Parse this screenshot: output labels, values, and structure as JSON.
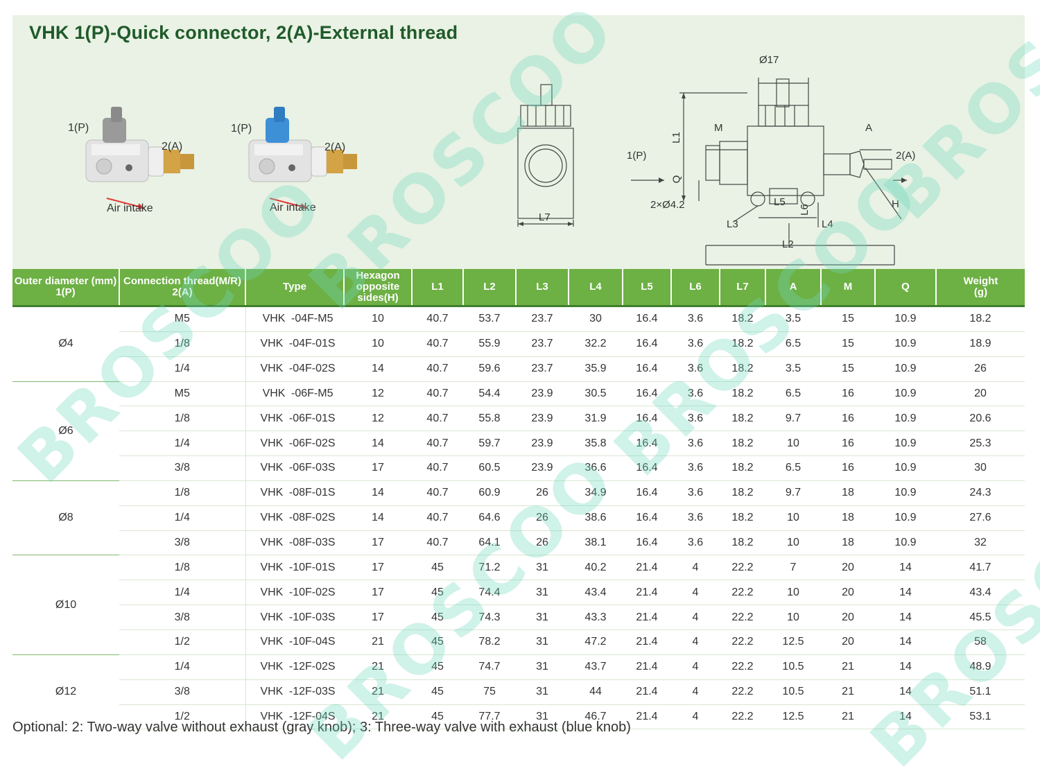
{
  "title": "VHK 1(P)-Quick connector, 2(A)-External thread",
  "watermark": "BROSCOO",
  "photos": [
    {
      "port1": "1(P)",
      "port2": "2(A)",
      "caption": "Air intake",
      "knob_color": "#9a9a9a"
    },
    {
      "port1": "1(P)",
      "port2": "2(A)",
      "caption": "Air intake",
      "knob_color": "#3d8fd6"
    }
  ],
  "side_view": {
    "l7": "L7"
  },
  "drawing": {
    "d17": "Ø17",
    "l1": "L1",
    "m": "M",
    "a": "A",
    "p": "1(P)",
    "out": "2(A)",
    "q": "Q",
    "holes": "2×Ø4.2",
    "l5": "L5",
    "l6": "L6",
    "h": "H",
    "l3": "L3",
    "l4": "L4",
    "l2": "L2"
  },
  "table": {
    "headers": [
      "Outer diameter (mm)\n1(P)",
      "Connection thread(M/R)\n2(A)",
      "Type",
      "Hexagon opposite sides(H)",
      "L1",
      "L2",
      "L3",
      "L4",
      "L5",
      "L6",
      "L7",
      "A",
      "M",
      "Q",
      "Weight\n(g)"
    ],
    "groups": [
      {
        "od": "Ø4",
        "rows": [
          {
            "thread": "M5",
            "type_a": "VHK",
            "type_b": "-04F-M5",
            "h": "10",
            "l1": "40.7",
            "l2": "53.7",
            "l3": "23.7",
            "l4": "30",
            "l5": "16.4",
            "l6": "3.6",
            "l7": "18.2",
            "a": "3.5",
            "m": "15",
            "q": "10.9",
            "w": "18.2"
          },
          {
            "thread": "1/8",
            "type_a": "VHK",
            "type_b": "-04F-01S",
            "h": "10",
            "l1": "40.7",
            "l2": "55.9",
            "l3": "23.7",
            "l4": "32.2",
            "l5": "16.4",
            "l6": "3.6",
            "l7": "18.2",
            "a": "6.5",
            "m": "15",
            "q": "10.9",
            "w": "18.9"
          },
          {
            "thread": "1/4",
            "type_a": "VHK",
            "type_b": "-04F-02S",
            "h": "14",
            "l1": "40.7",
            "l2": "59.6",
            "l3": "23.7",
            "l4": "35.9",
            "l5": "16.4",
            "l6": "3.6",
            "l7": "18.2",
            "a": "3.5",
            "m": "15",
            "q": "10.9",
            "w": "26"
          }
        ]
      },
      {
        "od": "Ø6",
        "rows": [
          {
            "thread": "M5",
            "type_a": "VHK",
            "type_b": "-06F-M5",
            "h": "12",
            "l1": "40.7",
            "l2": "54.4",
            "l3": "23.9",
            "l4": "30.5",
            "l5": "16.4",
            "l6": "3.6",
            "l7": "18.2",
            "a": "6.5",
            "m": "16",
            "q": "10.9",
            "w": "20"
          },
          {
            "thread": "1/8",
            "type_a": "VHK",
            "type_b": "-06F-01S",
            "h": "12",
            "l1": "40.7",
            "l2": "55.8",
            "l3": "23.9",
            "l4": "31.9",
            "l5": "16.4",
            "l6": "3.6",
            "l7": "18.2",
            "a": "9.7",
            "m": "16",
            "q": "10.9",
            "w": "20.6"
          },
          {
            "thread": "1/4",
            "type_a": "VHK",
            "type_b": "-06F-02S",
            "h": "14",
            "l1": "40.7",
            "l2": "59.7",
            "l3": "23.9",
            "l4": "35.8",
            "l5": "16.4",
            "l6": "3.6",
            "l7": "18.2",
            "a": "10",
            "m": "16",
            "q": "10.9",
            "w": "25.3"
          },
          {
            "thread": "3/8",
            "type_a": "VHK",
            "type_b": "-06F-03S",
            "h": "17",
            "l1": "40.7",
            "l2": "60.5",
            "l3": "23.9",
            "l4": "36.6",
            "l5": "16.4",
            "l6": "3.6",
            "l7": "18.2",
            "a": "6.5",
            "m": "16",
            "q": "10.9",
            "w": "30"
          }
        ]
      },
      {
        "od": "Ø8",
        "rows": [
          {
            "thread": "1/8",
            "type_a": "VHK",
            "type_b": "-08F-01S",
            "h": "14",
            "l1": "40.7",
            "l2": "60.9",
            "l3": "26",
            "l4": "34.9",
            "l5": "16.4",
            "l6": "3.6",
            "l7": "18.2",
            "a": "9.7",
            "m": "18",
            "q": "10.9",
            "w": "24.3"
          },
          {
            "thread": "1/4",
            "type_a": "VHK",
            "type_b": "-08F-02S",
            "h": "14",
            "l1": "40.7",
            "l2": "64.6",
            "l3": "26",
            "l4": "38.6",
            "l5": "16.4",
            "l6": "3.6",
            "l7": "18.2",
            "a": "10",
            "m": "18",
            "q": "10.9",
            "w": "27.6"
          },
          {
            "thread": "3/8",
            "type_a": "VHK",
            "type_b": "-08F-03S",
            "h": "17",
            "l1": "40.7",
            "l2": "64.1",
            "l3": "26",
            "l4": "38.1",
            "l5": "16.4",
            "l6": "3.6",
            "l7": "18.2",
            "a": "10",
            "m": "18",
            "q": "10.9",
            "w": "32"
          }
        ]
      },
      {
        "od": "Ø10",
        "rows": [
          {
            "thread": "1/8",
            "type_a": "VHK",
            "type_b": "-10F-01S",
            "h": "17",
            "l1": "45",
            "l2": "71.2",
            "l3": "31",
            "l4": "40.2",
            "l5": "21.4",
            "l6": "4",
            "l7": "22.2",
            "a": "7",
            "m": "20",
            "q": "14",
            "w": "41.7"
          },
          {
            "thread": "1/4",
            "type_a": "VHK",
            "type_b": "-10F-02S",
            "h": "17",
            "l1": "45",
            "l2": "74.4",
            "l3": "31",
            "l4": "43.4",
            "l5": "21.4",
            "l6": "4",
            "l7": "22.2",
            "a": "10",
            "m": "20",
            "q": "14",
            "w": "43.4"
          },
          {
            "thread": "3/8",
            "type_a": "VHK",
            "type_b": "-10F-03S",
            "h": "17",
            "l1": "45",
            "l2": "74.3",
            "l3": "31",
            "l4": "43.3",
            "l5": "21.4",
            "l6": "4",
            "l7": "22.2",
            "a": "10",
            "m": "20",
            "q": "14",
            "w": "45.5"
          },
          {
            "thread": "1/2",
            "type_a": "VHK",
            "type_b": "-10F-04S",
            "h": "21",
            "l1": "45",
            "l2": "78.2",
            "l3": "31",
            "l4": "47.2",
            "l5": "21.4",
            "l6": "4",
            "l7": "22.2",
            "a": "12.5",
            "m": "20",
            "q": "14",
            "w": "58"
          }
        ]
      },
      {
        "od": "Ø12",
        "rows": [
          {
            "thread": "1/4",
            "type_a": "VHK",
            "type_b": "-12F-02S",
            "h": "21",
            "l1": "45",
            "l2": "74.7",
            "l3": "31",
            "l4": "43.7",
            "l5": "21.4",
            "l6": "4",
            "l7": "22.2",
            "a": "10.5",
            "m": "21",
            "q": "14",
            "w": "48.9"
          },
          {
            "thread": "3/8",
            "type_a": "VHK",
            "type_b": "-12F-03S",
            "h": "21",
            "l1": "45",
            "l2": "75",
            "l3": "31",
            "l4": "44",
            "l5": "21.4",
            "l6": "4",
            "l7": "22.2",
            "a": "10.5",
            "m": "21",
            "q": "14",
            "w": "51.1"
          },
          {
            "thread": "1/2",
            "type_a": "VHK",
            "type_b": "-12F-04S",
            "h": "21",
            "l1": "45",
            "l2": "77.7",
            "l3": "31",
            "l4": "46.7",
            "l5": "21.4",
            "l6": "4",
            "l7": "22.2",
            "a": "12.5",
            "m": "21",
            "q": "14",
            "w": "53.1"
          }
        ]
      }
    ]
  },
  "footnote": "Optional: 2: Two-way valve without exhaust (gray knob); 3: Three-way valve with exhaust (blue knob)"
}
